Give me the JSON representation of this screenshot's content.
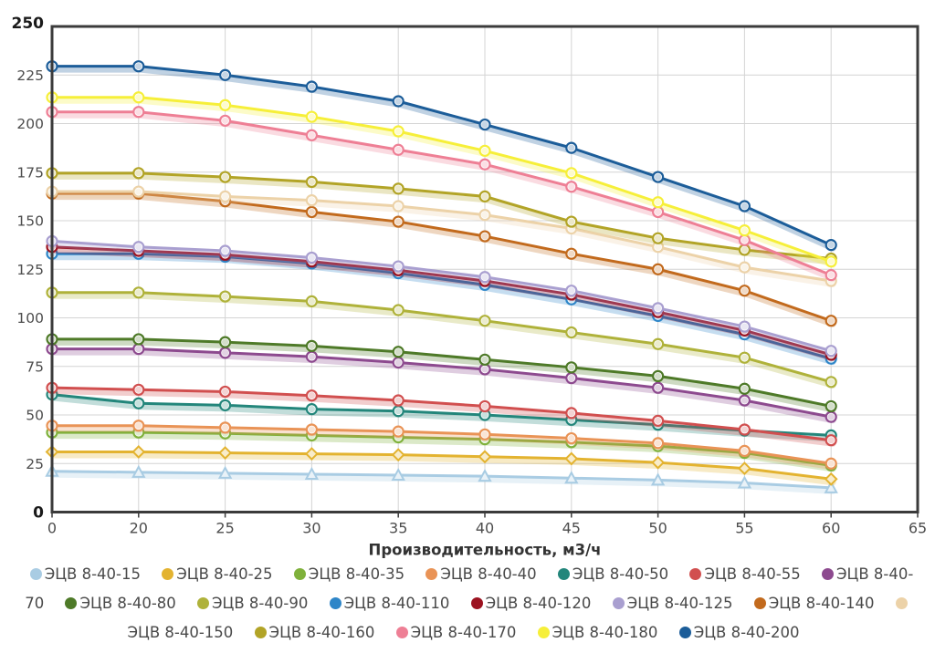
{
  "chart_data": {
    "type": "line",
    "title": "",
    "xlabel": "Производительность, м3/ч",
    "ylabel": "",
    "x_categories": [
      "0",
      "20",
      "25",
      "30",
      "35",
      "40",
      "45",
      "50",
      "55",
      "60",
      "65"
    ],
    "ylim": [
      0,
      250
    ],
    "y_ticks": [
      0,
      25,
      50,
      75,
      100,
      125,
      150,
      175,
      200,
      225,
      250
    ],
    "grid": true,
    "legend_position": "bottom",
    "axis_color": "#3b3b3b",
    "grid_color": "#d4d4d4",
    "tick_label_color": "#4d4d4d",
    "bold_label_color": "#1a1a1a",
    "series": [
      {
        "name": "ЭЦВ 8-40-15",
        "color": "#a9cce3",
        "marker": "triangle",
        "values": [
          21,
          20.5,
          20,
          19.5,
          19,
          18.5,
          17.5,
          16.5,
          15,
          12.5
        ]
      },
      {
        "name": "ЭЦВ 8-40-25",
        "color": "#e3b330",
        "marker": "diamond",
        "values": [
          31,
          31,
          30.5,
          30,
          29.5,
          28.5,
          27.5,
          25.5,
          22.5,
          17
        ]
      },
      {
        "name": "ЭЦВ 8-40-35",
        "color": "#7fb13b",
        "marker": "circle",
        "values": [
          41,
          41,
          40.5,
          39.5,
          38.5,
          37.5,
          36,
          34,
          30.5,
          24
        ]
      },
      {
        "name": "ЭЦВ 8-40-40",
        "color": "#e99356",
        "marker": "circle",
        "values": [
          44.5,
          44.5,
          43.5,
          42.5,
          41.5,
          40,
          38,
          35.5,
          31.5,
          25
        ]
      },
      {
        "name": "ЭЦВ 8-40-50",
        "color": "#23867b",
        "marker": "circle",
        "values": [
          60.5,
          56,
          55,
          53,
          52,
          50,
          47.5,
          45,
          42,
          39.5
        ]
      },
      {
        "name": "ЭЦВ 8-40-55",
        "color": "#d14f4f",
        "marker": "circle",
        "values": [
          64,
          63,
          62,
          60,
          57.5,
          54.5,
          51,
          47,
          42.5,
          37
        ]
      },
      {
        "name": "ЭЦВ 8-40-70",
        "color": "#8d4a8f",
        "marker": "circle",
        "values": [
          84,
          84,
          82,
          80,
          77,
          73.5,
          69,
          64,
          57.5,
          49
        ]
      },
      {
        "name": "ЭЦВ 8-40-80",
        "color": "#4e7a28",
        "marker": "circle",
        "values": [
          89,
          89,
          87.5,
          85.5,
          82.5,
          78.5,
          74.5,
          70,
          63.5,
          54.5
        ]
      },
      {
        "name": "ЭЦВ 8-40-90",
        "color": "#afb23a",
        "marker": "circle",
        "values": [
          113,
          113,
          111,
          108.5,
          104,
          98.5,
          92.5,
          86.5,
          79.5,
          67
        ]
      },
      {
        "name": "ЭЦВ 8-40-110",
        "color": "#2e86c8",
        "marker": "circle",
        "values": [
          133,
          133,
          131.5,
          128,
          123,
          117,
          109.5,
          101,
          91.5,
          79
        ]
      },
      {
        "name": "ЭЦВ 8-40-120",
        "color": "#9c1220",
        "marker": "circle",
        "values": [
          136.5,
          134.5,
          132.5,
          129,
          124.5,
          119,
          112,
          103,
          93.5,
          81
        ]
      },
      {
        "name": "ЭЦВ 8-40-125",
        "color": "#a99fd0",
        "marker": "circle",
        "values": [
          139.5,
          136.5,
          134.5,
          131,
          126.5,
          121,
          114,
          105,
          95.5,
          83
        ]
      },
      {
        "name": "ЭЦВ 8-40-140",
        "color": "#c26a1d",
        "marker": "circle",
        "values": [
          164,
          164,
          160,
          154.5,
          149.5,
          142,
          133,
          125,
          114,
          98.5
        ]
      },
      {
        "name": "ЭЦВ 8-40-150",
        "color": "#ecd2a8",
        "marker": "circle",
        "values": [
          165,
          165,
          162.5,
          160.5,
          157.5,
          153,
          146,
          136.5,
          126,
          119
        ]
      },
      {
        "name": "ЭЦВ 8-40-160",
        "color": "#b2a427",
        "marker": "circle",
        "values": [
          174.5,
          174.5,
          172.5,
          170,
          166.5,
          162.5,
          149.5,
          141,
          135,
          130.5
        ]
      },
      {
        "name": "ЭЦВ 8-40-170",
        "color": "#ee7f95",
        "marker": "circle",
        "values": [
          206,
          206,
          201.5,
          194,
          186.5,
          179,
          167.5,
          154.5,
          140,
          122
        ]
      },
      {
        "name": "ЭЦВ 8-40-180",
        "color": "#f6ef39",
        "marker": "circle",
        "values": [
          213.5,
          213.5,
          209.5,
          203.5,
          196,
          186,
          174.5,
          159.5,
          145,
          129
        ]
      },
      {
        "name": "ЭЦВ 8-40-200",
        "color": "#1c5d99",
        "marker": "circle",
        "values": [
          229.5,
          229.5,
          225,
          219,
          211.5,
          199.5,
          187.5,
          172.5,
          157.5,
          137.5
        ]
      }
    ]
  }
}
